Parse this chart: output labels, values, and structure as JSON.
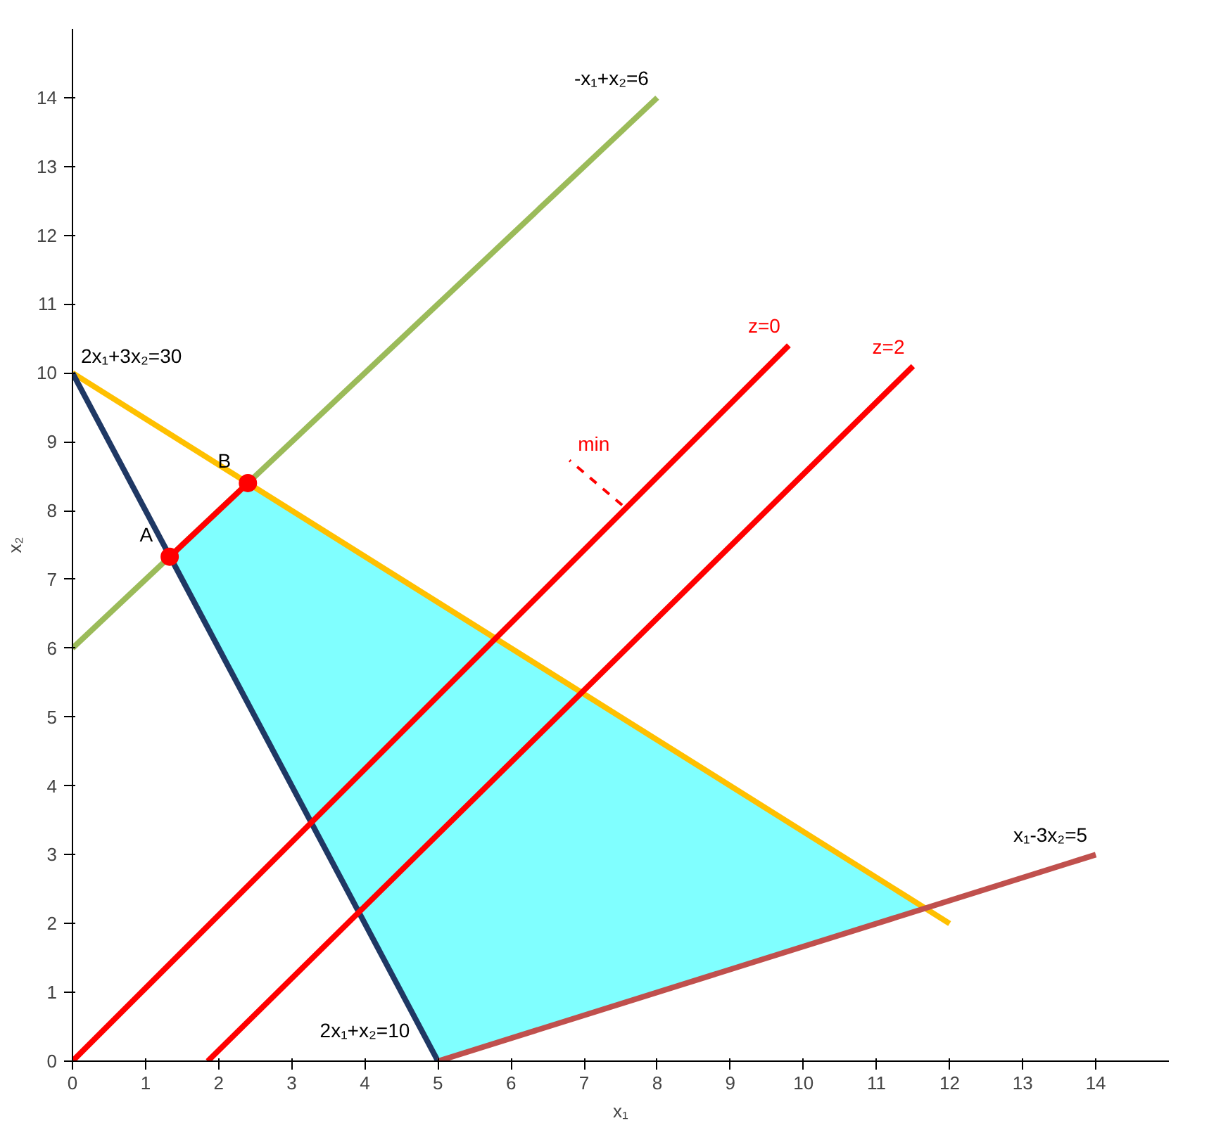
{
  "chart_data": {
    "type": "line",
    "xlabel": "x₁",
    "ylabel": "x₂",
    "xlim": [
      0,
      15
    ],
    "ylim": [
      0,
      15
    ],
    "xticks": [
      0,
      1,
      2,
      3,
      4,
      5,
      6,
      7,
      8,
      9,
      10,
      11,
      12,
      13,
      14
    ],
    "yticks": [
      0,
      1,
      2,
      3,
      4,
      5,
      6,
      7,
      8,
      9,
      10,
      11,
      12,
      13,
      14
    ],
    "grid": false,
    "series": [
      {
        "type": "area",
        "color": "#80ffff",
        "x": [
          1.33,
          2.4,
          11.67,
          5
        ],
        "values": [
          7.33,
          8.4,
          2.22,
          0
        ]
      },
      {
        "name": "-x₁+x₂=6",
        "color": "#9bbb59",
        "x": [
          0,
          8
        ],
        "values": [
          6,
          14
        ]
      },
      {
        "name": "2x₁+3x₂=30",
        "color": "#ffc000",
        "x": [
          12,
          0
        ],
        "values": [
          2,
          10
        ]
      },
      {
        "name": "2x₁+x₂=10",
        "color": "#1f3864",
        "x": [
          0,
          5
        ],
        "values": [
          10,
          0
        ]
      },
      {
        "name": "x₁-3x₂=5",
        "color": "#c0504d",
        "x": [
          5,
          14
        ],
        "values": [
          0,
          3
        ]
      },
      {
        "name": "z=0",
        "color": "#ff0000",
        "x": [
          0,
          9.8
        ],
        "values": [
          0,
          10.4
        ]
      },
      {
        "name": "z=2",
        "color": "#ff0000",
        "x": [
          1.85,
          11.5
        ],
        "values": [
          0,
          10.1
        ]
      },
      {
        "color": "#ff0000",
        "x": [
          1.33,
          2.4
        ],
        "values": [
          7.33,
          8.4
        ]
      },
      {
        "name": "A",
        "type": "scatter",
        "color": "#ff0000",
        "x": [
          1.33
        ],
        "values": [
          7.33
        ]
      },
      {
        "name": "B",
        "type": "scatter",
        "color": "#ff0000",
        "x": [
          2.4
        ],
        "values": [
          8.4
        ]
      },
      {
        "name": "min",
        "color": "#ff0000",
        "line_style": "dashed",
        "x": [
          7.52,
          6.8
        ],
        "values": [
          8.08,
          8.73
        ]
      }
    ]
  }
}
